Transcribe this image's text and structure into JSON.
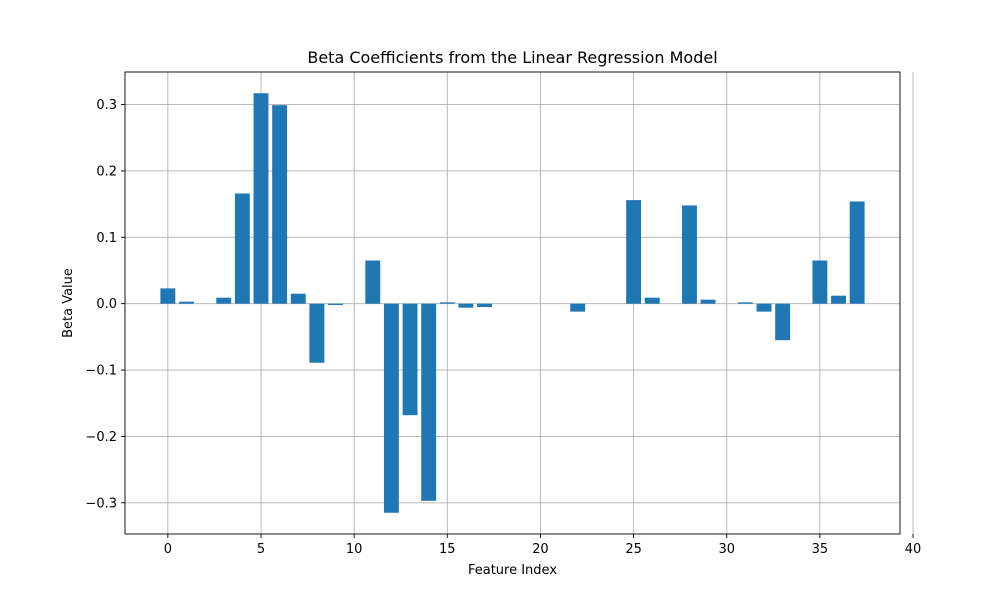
{
  "chart_data": {
    "type": "bar",
    "title": "Beta Coefficients from the Linear Regression Model",
    "xlabel": "Feature Index",
    "ylabel": "Beta Value",
    "x": [
      0,
      1,
      2,
      3,
      4,
      5,
      6,
      7,
      8,
      9,
      10,
      11,
      12,
      13,
      14,
      15,
      16,
      17,
      18,
      19,
      20,
      21,
      22,
      23,
      24,
      25,
      26,
      27,
      28,
      29,
      30,
      31,
      32,
      33,
      34,
      35,
      36,
      37
    ],
    "values": [
      0.023,
      0.003,
      0.0,
      0.009,
      0.166,
      0.317,
      0.299,
      0.015,
      -0.089,
      -0.002,
      0.0,
      0.065,
      -0.315,
      -0.168,
      -0.297,
      0.002,
      -0.006,
      -0.005,
      0.0,
      0.0,
      0.0,
      0.0,
      -0.012,
      0.0,
      0.0,
      0.156,
      0.009,
      0.0,
      0.148,
      0.006,
      0.0,
      0.002,
      -0.012,
      -0.055,
      0.0,
      0.065,
      0.012,
      0.154
    ],
    "xlim": [
      -2.3,
      39.3
    ],
    "ylim": [
      -0.347,
      0.349
    ],
    "xticks": [
      0,
      5,
      10,
      15,
      20,
      25,
      30,
      35,
      40
    ],
    "yticks": [
      -0.3,
      -0.2,
      -0.1,
      0.0,
      0.1,
      0.2,
      0.3
    ],
    "ytick_labels": [
      "−0.3",
      "−0.2",
      "−0.1",
      "0.0",
      "0.1",
      "0.2",
      "0.3"
    ],
    "grid": true,
    "bar_color": "#1f77b4"
  }
}
